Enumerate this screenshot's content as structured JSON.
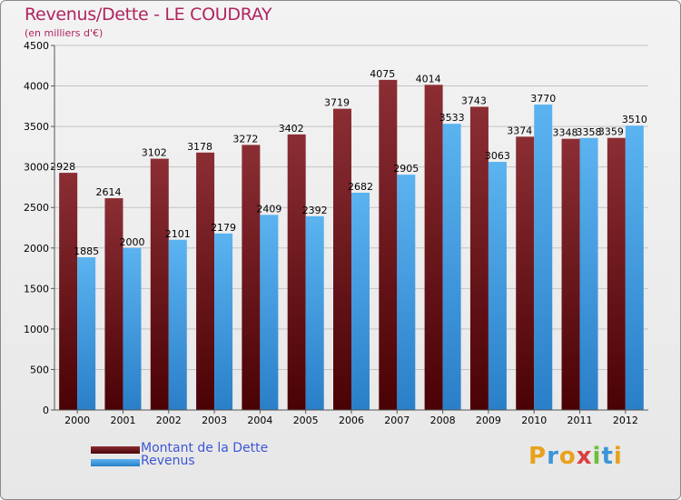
{
  "title": "Revenus/Dette - LE COUDRAY",
  "subtitle": "(en milliers d'€)",
  "brand": [
    "P",
    "r",
    "o",
    "x",
    "i",
    "t",
    "i"
  ],
  "brand_colors": [
    "#e8a21c",
    "#3c95d6",
    "#e8a21c",
    "#d94040",
    "#6dbf3a",
    "#3c95d6",
    "#e8a21c"
  ],
  "legend": [
    {
      "label": "Montant de la Dette",
      "color": "#6b0e14"
    },
    {
      "label": "Revenus",
      "color": "#3f9be0"
    }
  ],
  "chart_data": {
    "type": "bar",
    "title": "Revenus/Dette - LE COUDRAY",
    "ylabel": "(en milliers d'€)",
    "categories": [
      "2000",
      "2001",
      "2002",
      "2003",
      "2004",
      "2005",
      "2006",
      "2007",
      "2008",
      "2009",
      "2010",
      "2011",
      "2012"
    ],
    "series": [
      {
        "name": "Montant de la Dette",
        "values": [
          2928,
          2614,
          3102,
          3178,
          3272,
          3402,
          3719,
          4075,
          4014,
          3743,
          3374,
          3348,
          3359
        ]
      },
      {
        "name": "Revenus",
        "values": [
          1885,
          2000,
          2101,
          2179,
          2409,
          2392,
          2682,
          2905,
          3533,
          3063,
          3770,
          3358,
          3510
        ]
      }
    ],
    "ylim": [
      0,
      4500
    ],
    "yticks": [
      0,
      500,
      1000,
      1500,
      2000,
      2500,
      3000,
      3500,
      4000,
      4500
    ],
    "grid": true,
    "legend_position": "bottom-left"
  }
}
